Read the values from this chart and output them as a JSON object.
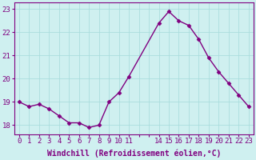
{
  "x": [
    0,
    1,
    2,
    3,
    4,
    5,
    6,
    7,
    8,
    9,
    10,
    11,
    14,
    15,
    16,
    17,
    18,
    19,
    20,
    21,
    22,
    23
  ],
  "y": [
    19.0,
    18.8,
    18.9,
    18.7,
    18.4,
    18.1,
    18.1,
    17.9,
    18.0,
    19.0,
    19.4,
    20.1,
    22.4,
    22.9,
    22.5,
    22.3,
    21.7,
    20.9,
    20.3,
    19.8,
    19.3,
    18.8
  ],
  "line_color": "#800080",
  "marker": "D",
  "marker_size": 2.5,
  "bg_color": "#cff0f0",
  "grid_color": "#aadddd",
  "xlabel": "Windchill (Refroidissement éolien,°C)",
  "xlabel_color": "#800080",
  "xlabel_fontsize": 7,
  "tick_color": "#800080",
  "tick_fontsize": 6.5,
  "ylim": [
    17.6,
    23.3
  ],
  "yticks": [
    18,
    19,
    20,
    21,
    22,
    23
  ],
  "xticks_all": [
    0,
    1,
    2,
    3,
    4,
    5,
    6,
    7,
    8,
    9,
    10,
    11,
    12,
    13,
    14,
    15,
    16,
    17,
    18,
    19,
    20,
    21,
    22,
    23
  ],
  "xtick_labels": [
    "0",
    "1",
    "2",
    "3",
    "4",
    "5",
    "6",
    "7",
    "8",
    "9",
    "10",
    "11",
    "",
    "",
    "14",
    "15",
    "16",
    "17",
    "18",
    "19",
    "20",
    "21",
    "22",
    "23"
  ],
  "xlim": [
    -0.5,
    23.5
  ],
  "linewidth": 1.0,
  "spine_color": "#800080"
}
